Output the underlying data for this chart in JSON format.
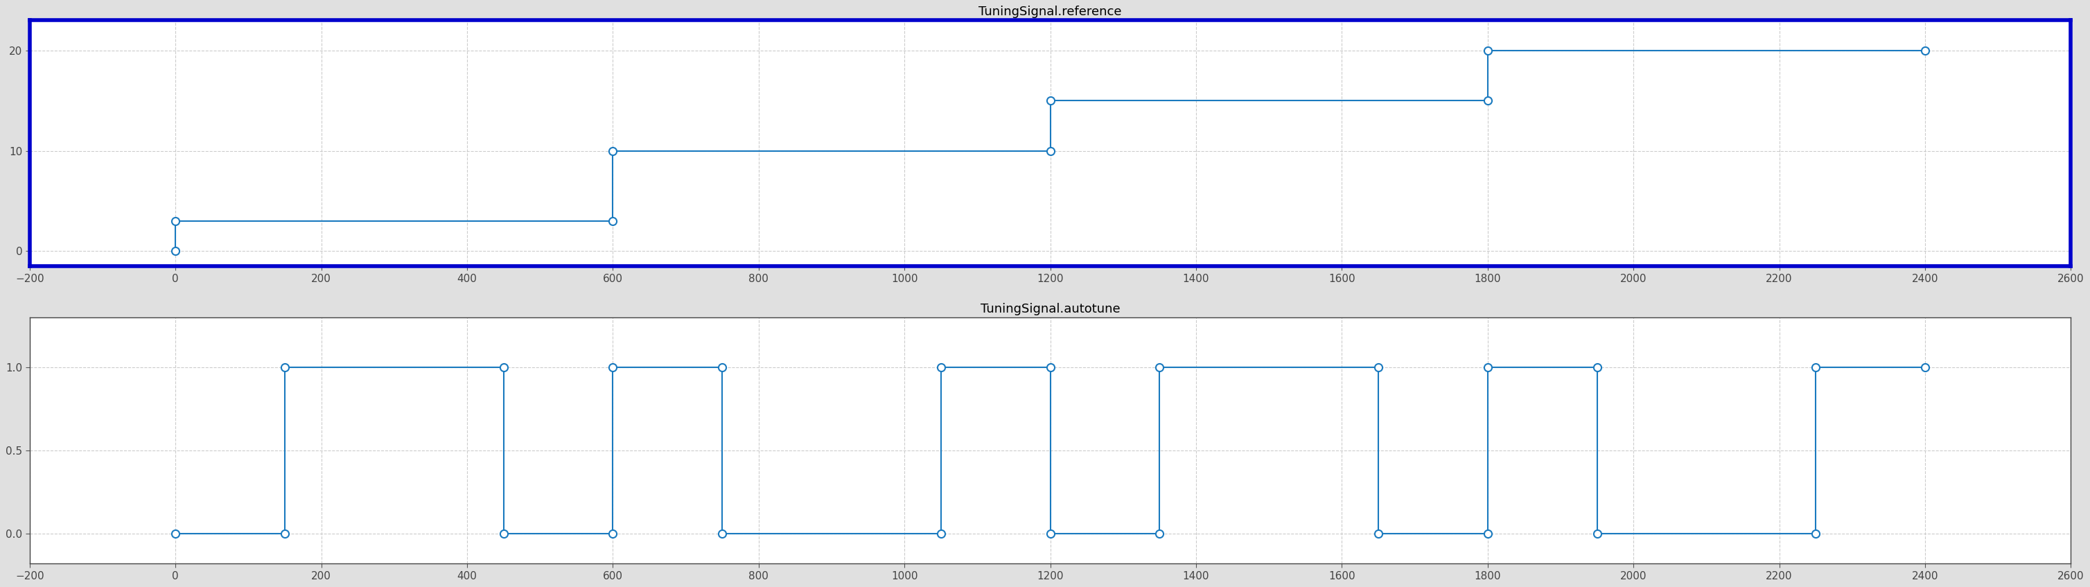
{
  "title1": "TuningSignal.reference",
  "title2": "TuningSignal.autotune",
  "bg_color": "#e0e0e0",
  "plot_bg_color": "#ffffff",
  "line_color": "#1a7abf",
  "border_color_top": "#0000cc",
  "border_color_bot": "#444444",
  "grid_color": "#cccccc",
  "xlim": [
    -200,
    2600
  ],
  "xticks": [
    -200,
    0,
    200,
    400,
    600,
    800,
    1000,
    1200,
    1400,
    1600,
    1800,
    2000,
    2200,
    2400,
    2600
  ],
  "ref_ylim": [
    -1.5,
    23
  ],
  "ref_yticks": [
    0,
    10,
    20
  ],
  "auto_ylim": [
    -0.18,
    1.3
  ],
  "auto_yticks": [
    0,
    0.5,
    1
  ],
  "ref_x": [
    0,
    0,
    600,
    600,
    1200,
    1200,
    1800,
    1800,
    2400
  ],
  "ref_y": [
    0,
    3,
    3,
    10,
    10,
    15,
    15,
    20,
    20
  ],
  "ref_mk_x": [
    0,
    0,
    600,
    600,
    1200,
    1200,
    1800,
    1800,
    2400
  ],
  "ref_mk_y": [
    0,
    3,
    3,
    10,
    10,
    15,
    15,
    20,
    20
  ],
  "auto_x": [
    0,
    0,
    150,
    150,
    450,
    450,
    600,
    600,
    750,
    750,
    1050,
    1050,
    1200,
    1200,
    1350,
    1350,
    1650,
    1650,
    1800,
    1800,
    1950,
    1950,
    2250,
    2250,
    2400
  ],
  "auto_y": [
    0,
    0,
    0,
    1,
    1,
    0,
    0,
    1,
    1,
    0,
    0,
    1,
    1,
    0,
    0,
    1,
    1,
    0,
    0,
    1,
    1,
    0,
    0,
    1,
    1
  ],
  "auto_mk_x": [
    0,
    150,
    150,
    450,
    450,
    600,
    600,
    750,
    750,
    1050,
    1050,
    1200,
    1200,
    1350,
    1350,
    1650,
    1650,
    1800,
    1800,
    1950,
    1950,
    2250,
    2250,
    2400
  ],
  "auto_mk_y": [
    0,
    0,
    1,
    1,
    0,
    0,
    1,
    1,
    0,
    0,
    1,
    1,
    0,
    0,
    1,
    1,
    0,
    0,
    1,
    1,
    0,
    0,
    1,
    1
  ],
  "title_fontsize": 13,
  "tick_fontsize": 11,
  "marker_size": 8,
  "line_width": 1.5
}
